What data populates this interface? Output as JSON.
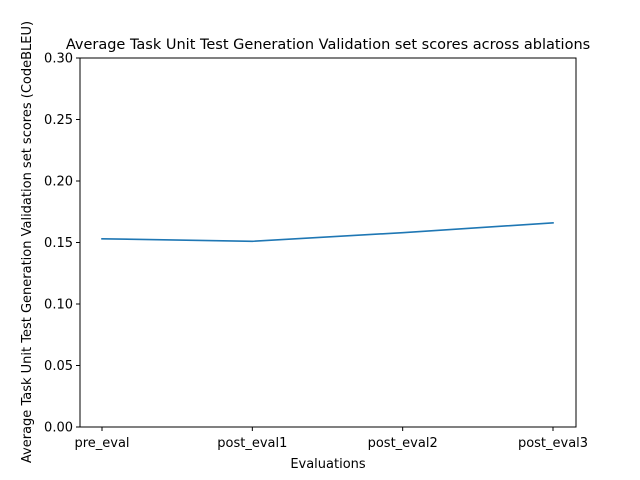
{
  "chart_data": {
    "type": "line",
    "title": "Average Task Unit Test Generation Validation set scores across ablations",
    "xlabel": "Evaluations",
    "ylabel": "Average Task Unit Test Generation Validation set scores (CodeBLEU)",
    "categories": [
      "pre_eval",
      "post_eval1",
      "post_eval2",
      "post_eval3"
    ],
    "series": [
      {
        "values": [
          0.153,
          0.151,
          0.158,
          0.166
        ],
        "color": "#1f77b4"
      }
    ],
    "ylim": [
      0,
      0.3
    ],
    "yticks": [
      0.0,
      0.05,
      0.1,
      0.15,
      0.2,
      0.25,
      0.3
    ],
    "ytick_labels": [
      "0.00",
      "0.05",
      "0.10",
      "0.15",
      "0.20",
      "0.25",
      "0.30"
    ],
    "grid": false,
    "legend": "none"
  }
}
